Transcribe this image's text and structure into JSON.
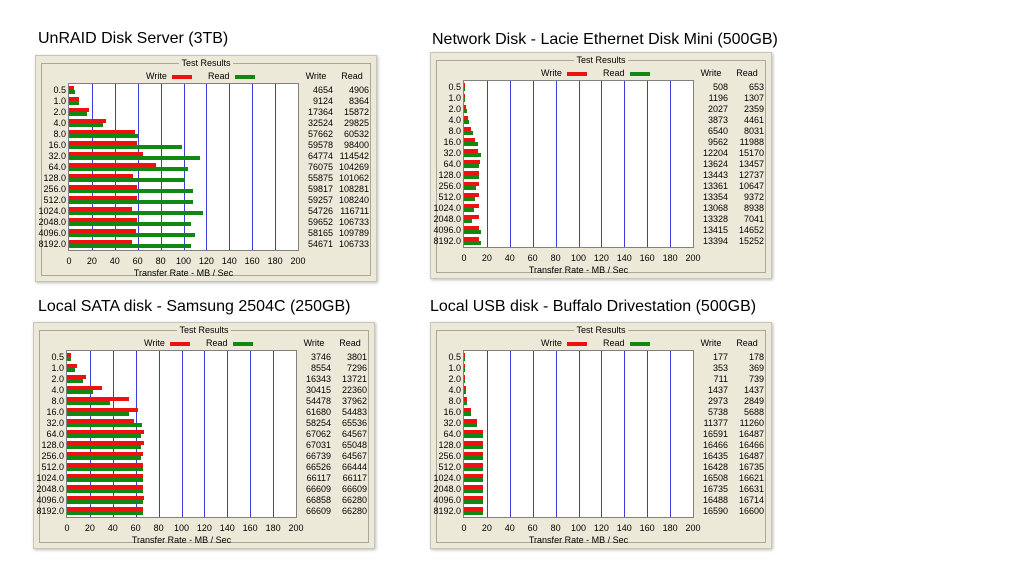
{
  "chart_data": [
    {
      "type": "bar",
      "title": "UnRAID Disk Server (3TB)",
      "group_title": "Test Results",
      "legend": [
        "Write",
        "Read"
      ],
      "categories": [
        "0.5",
        "1.0",
        "2.0",
        "4.0",
        "8.0",
        "16.0",
        "32.0",
        "64.0",
        "128.0",
        "256.0",
        "512.0",
        "1024.0",
        "2048.0",
        "4096.0",
        "8192.0"
      ],
      "series": [
        {
          "name": "Write",
          "values": [
            4654,
            9124,
            17364,
            32524,
            57662,
            59578,
            64774,
            76075,
            55875,
            59817,
            59257,
            54726,
            59652,
            58165,
            54671
          ]
        },
        {
          "name": "Read",
          "values": [
            4906,
            8364,
            15872,
            29825,
            60532,
            98400,
            114542,
            104269,
            101062,
            108281,
            108240,
            116711,
            106733,
            109789,
            106733
          ]
        }
      ],
      "xlabel": "Transfer Rate - MB / Sec",
      "xlim": [
        0,
        200
      ],
      "xticks": [
        "0",
        "20",
        "40",
        "60",
        "80",
        "100",
        "120",
        "140",
        "160",
        "180",
        "200"
      ],
      "table_headers": [
        "Write",
        "Read"
      ]
    },
    {
      "type": "bar",
      "title": "Network Disk - Lacie Ethernet Disk Mini (500GB)",
      "group_title": "Test Results",
      "legend": [
        "Write",
        "Read"
      ],
      "categories": [
        "0.5",
        "1.0",
        "2.0",
        "4.0",
        "8.0",
        "16.0",
        "32.0",
        "64.0",
        "128.0",
        "256.0",
        "512.0",
        "1024.0",
        "2048.0",
        "4096.0",
        "8192.0"
      ],
      "series": [
        {
          "name": "Write",
          "values": [
            508,
            1196,
            2027,
            3873,
            6540,
            9562,
            12204,
            13624,
            13443,
            13361,
            13354,
            13068,
            13328,
            13415,
            13394
          ]
        },
        {
          "name": "Read",
          "values": [
            653,
            1307,
            2359,
            4461,
            8031,
            11988,
            15170,
            13457,
            12737,
            10647,
            9372,
            8938,
            7041,
            14652,
            15252
          ]
        }
      ],
      "xlabel": "Transfer Rate - MB / Sec",
      "xlim": [
        0,
        200
      ],
      "xticks": [
        "0",
        "20",
        "40",
        "60",
        "80",
        "100",
        "120",
        "140",
        "160",
        "180",
        "200"
      ],
      "table_headers": [
        "Write",
        "Read"
      ]
    },
    {
      "type": "bar",
      "title": "Local SATA disk - Samsung 2504C (250GB)",
      "group_title": "Test Results",
      "legend": [
        "Write",
        "Read"
      ],
      "categories": [
        "0.5",
        "1.0",
        "2.0",
        "4.0",
        "8.0",
        "16.0",
        "32.0",
        "64.0",
        "128.0",
        "256.0",
        "512.0",
        "1024.0",
        "2048.0",
        "4096.0",
        "8192.0"
      ],
      "series": [
        {
          "name": "Write",
          "values": [
            3746,
            8554,
            16343,
            30415,
            54478,
            61680,
            58254,
            67062,
            67031,
            66739,
            66526,
            66117,
            66609,
            66858,
            66609
          ]
        },
        {
          "name": "Read",
          "values": [
            3801,
            7296,
            13721,
            22360,
            37962,
            54483,
            65536,
            64567,
            65048,
            64567,
            66444,
            66117,
            66609,
            66280,
            66280
          ]
        }
      ],
      "xlabel": "Transfer Rate - MB / Sec",
      "xlim": [
        0,
        200
      ],
      "xticks": [
        "0",
        "20",
        "40",
        "60",
        "80",
        "100",
        "120",
        "140",
        "160",
        "180",
        "200"
      ],
      "table_headers": [
        "Write",
        "Read"
      ]
    },
    {
      "type": "bar",
      "title": "Local USB disk - Buffalo Drivestation (500GB)",
      "group_title": "Test Results",
      "legend": [
        "Write",
        "Read"
      ],
      "categories": [
        "0.5",
        "1.0",
        "2.0",
        "4.0",
        "8.0",
        "16.0",
        "32.0",
        "64.0",
        "128.0",
        "256.0",
        "512.0",
        "1024.0",
        "2048.0",
        "4096.0",
        "8192.0"
      ],
      "series": [
        {
          "name": "Write",
          "values": [
            177,
            353,
            711,
            1437,
            2973,
            5738,
            11377,
            16591,
            16466,
            16435,
            16428,
            16508,
            16735,
            16488,
            16590
          ]
        },
        {
          "name": "Read",
          "values": [
            178,
            369,
            739,
            1437,
            2849,
            5688,
            11260,
            16487,
            16466,
            16487,
            16735,
            16621,
            16631,
            16714,
            16600
          ]
        }
      ],
      "xlabel": "Transfer Rate - MB / Sec",
      "xlim": [
        0,
        200
      ],
      "xticks": [
        "0",
        "20",
        "40",
        "60",
        "80",
        "100",
        "120",
        "140",
        "160",
        "180",
        "200"
      ],
      "table_headers": [
        "Write",
        "Read"
      ]
    }
  ],
  "colors": {
    "write": "#ee1111",
    "read": "#118811",
    "grid": "#3c3cd8"
  }
}
